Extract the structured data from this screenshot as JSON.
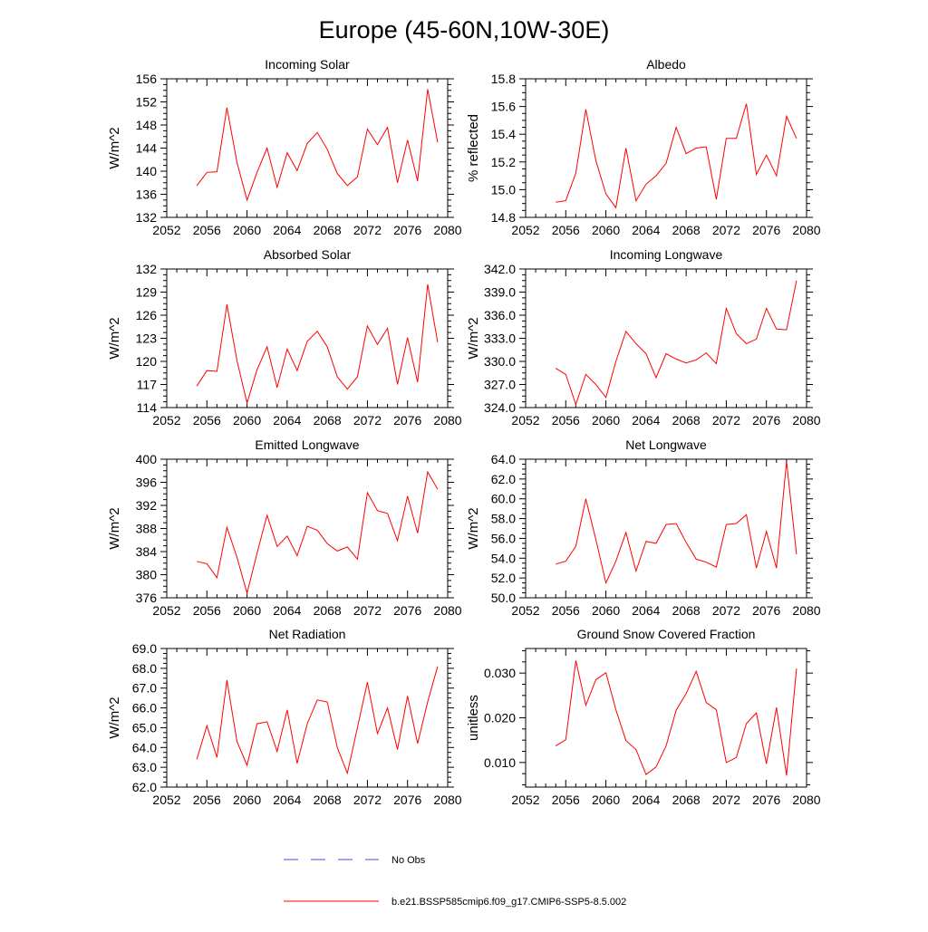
{
  "title": "Europe (45-60N,10W-30E)",
  "colors": {
    "model": "#ff0000",
    "obs": "#4a4ad0",
    "axis": "#000000"
  },
  "legend": {
    "obs_label": "No Obs",
    "model_label": "b.e21.BSSP585cmip6.f09_g17.CMIP6-SSP5-8.5.002"
  },
  "chart_data": [
    {
      "type": "line",
      "title": "Incoming Solar",
      "xlabel": "",
      "ylabel": "W/m^2",
      "xlim": [
        2052,
        2080
      ],
      "ylim": [
        132,
        156
      ],
      "xticks": [
        2052,
        2056,
        2060,
        2064,
        2068,
        2072,
        2076,
        2080
      ],
      "yticks": [
        132,
        136,
        140,
        144,
        148,
        152,
        156
      ],
      "ytick_decimals": 0,
      "x": [
        2055,
        2056,
        2057,
        2058,
        2059,
        2060,
        2061,
        2062,
        2063,
        2064,
        2065,
        2066,
        2067,
        2068,
        2069,
        2070,
        2071,
        2072,
        2073,
        2074,
        2075,
        2076,
        2077,
        2078,
        2079
      ],
      "series": [
        {
          "name": "b.e21.BSSP585cmip6.f09_g17.CMIP6-SSP5-8.5.002",
          "values": [
            137.5,
            139.8,
            139.9,
            151.0,
            141.5,
            135.0,
            139.8,
            144.0,
            137.2,
            143.2,
            140.1,
            144.8,
            146.7,
            143.8,
            139.6,
            137.5,
            139.0,
            147.3,
            144.6,
            147.6,
            138.0,
            145.4,
            138.3,
            154.2,
            145.0
          ]
        }
      ]
    },
    {
      "type": "line",
      "title": "Albedo",
      "xlabel": "",
      "ylabel": "% reflected",
      "xlim": [
        2052,
        2080
      ],
      "ylim": [
        14.8,
        15.8
      ],
      "xticks": [
        2052,
        2056,
        2060,
        2064,
        2068,
        2072,
        2076,
        2080
      ],
      "yticks": [
        14.8,
        15.0,
        15.2,
        15.4,
        15.6,
        15.8
      ],
      "ytick_decimals": 1,
      "x": [
        2055,
        2056,
        2057,
        2058,
        2059,
        2060,
        2061,
        2062,
        2063,
        2064,
        2065,
        2066,
        2067,
        2068,
        2069,
        2070,
        2071,
        2072,
        2073,
        2074,
        2075,
        2076,
        2077,
        2078,
        2079
      ],
      "series": [
        {
          "name": "b.e21.BSSP585cmip6.f09_g17.CMIP6-SSP5-8.5.002",
          "values": [
            14.91,
            14.92,
            15.12,
            15.58,
            15.21,
            14.97,
            14.87,
            15.3,
            14.92,
            15.04,
            15.1,
            15.19,
            15.45,
            15.26,
            15.3,
            15.31,
            14.93,
            15.37,
            15.37,
            15.62,
            15.11,
            15.25,
            15.1,
            15.53,
            15.37
          ]
        }
      ]
    },
    {
      "type": "line",
      "title": "Absorbed Solar",
      "xlabel": "",
      "ylabel": "W/m^2",
      "xlim": [
        2052,
        2080
      ],
      "ylim": [
        114,
        132
      ],
      "xticks": [
        2052,
        2056,
        2060,
        2064,
        2068,
        2072,
        2076,
        2080
      ],
      "yticks": [
        114,
        117,
        120,
        123,
        126,
        129,
        132
      ],
      "ytick_decimals": 0,
      "x": [
        2055,
        2056,
        2057,
        2058,
        2059,
        2060,
        2061,
        2062,
        2063,
        2064,
        2065,
        2066,
        2067,
        2068,
        2069,
        2070,
        2071,
        2072,
        2073,
        2074,
        2075,
        2076,
        2077,
        2078,
        2079
      ],
      "series": [
        {
          "name": "b.e21.BSSP585cmip6.f09_g17.CMIP6-SSP5-8.5.002",
          "values": [
            116.8,
            118.8,
            118.7,
            127.4,
            120.1,
            114.6,
            118.9,
            121.9,
            116.6,
            121.6,
            118.8,
            122.6,
            123.9,
            121.9,
            118.0,
            116.4,
            118.0,
            124.6,
            122.2,
            124.3,
            117.0,
            123.1,
            117.3,
            130.0,
            122.5
          ]
        }
      ]
    },
    {
      "type": "line",
      "title": "Incoming Longwave",
      "xlabel": "",
      "ylabel": "W/m^2",
      "xlim": [
        2052,
        2080
      ],
      "ylim": [
        324,
        342
      ],
      "xticks": [
        2052,
        2056,
        2060,
        2064,
        2068,
        2072,
        2076,
        2080
      ],
      "yticks": [
        324,
        327,
        330,
        333,
        336,
        339,
        342
      ],
      "ytick_decimals": 1,
      "x": [
        2055,
        2056,
        2057,
        2058,
        2059,
        2060,
        2061,
        2062,
        2063,
        2064,
        2065,
        2066,
        2067,
        2068,
        2069,
        2070,
        2071,
        2072,
        2073,
        2074,
        2075,
        2076,
        2077,
        2078,
        2079
      ],
      "series": [
        {
          "name": "b.e21.BSSP585cmip6.f09_g17.CMIP6-SSP5-8.5.002",
          "values": [
            329.1,
            328.3,
            324.4,
            328.3,
            327.0,
            325.3,
            330.0,
            333.9,
            332.3,
            331.0,
            327.9,
            331.0,
            330.3,
            329.8,
            330.2,
            331.1,
            329.7,
            336.9,
            333.6,
            332.3,
            332.9,
            336.9,
            334.2,
            334.1,
            340.5
          ]
        }
      ]
    },
    {
      "type": "line",
      "title": "Emitted Longwave",
      "xlabel": "",
      "ylabel": "W/m^2",
      "xlim": [
        2052,
        2080
      ],
      "ylim": [
        376,
        400
      ],
      "xticks": [
        2052,
        2056,
        2060,
        2064,
        2068,
        2072,
        2076,
        2080
      ],
      "yticks": [
        376,
        380,
        384,
        388,
        392,
        396,
        400
      ],
      "ytick_decimals": 0,
      "x": [
        2055,
        2056,
        2057,
        2058,
        2059,
        2060,
        2061,
        2062,
        2063,
        2064,
        2065,
        2066,
        2067,
        2068,
        2069,
        2070,
        2071,
        2072,
        2073,
        2074,
        2075,
        2076,
        2077,
        2078,
        2079
      ],
      "series": [
        {
          "name": "b.e21.BSSP585cmip6.f09_g17.CMIP6-SSP5-8.5.002",
          "values": [
            382.3,
            381.9,
            379.5,
            388.2,
            383.0,
            376.8,
            383.7,
            390.3,
            384.9,
            386.7,
            383.3,
            388.4,
            387.7,
            385.4,
            384.1,
            384.8,
            382.7,
            394.2,
            391.1,
            390.6,
            385.9,
            393.6,
            387.2,
            397.8,
            394.8
          ]
        }
      ]
    },
    {
      "type": "line",
      "title": "Net Longwave",
      "xlabel": "",
      "ylabel": "W/m^2",
      "xlim": [
        2052,
        2080
      ],
      "ylim": [
        50,
        64
      ],
      "xticks": [
        2052,
        2056,
        2060,
        2064,
        2068,
        2072,
        2076,
        2080
      ],
      "yticks": [
        50,
        52,
        54,
        56,
        58,
        60,
        62,
        64
      ],
      "ytick_decimals": 1,
      "x": [
        2055,
        2056,
        2057,
        2058,
        2059,
        2060,
        2061,
        2062,
        2063,
        2064,
        2065,
        2066,
        2067,
        2068,
        2069,
        2070,
        2071,
        2072,
        2073,
        2074,
        2075,
        2076,
        2077,
        2078,
        2079
      ],
      "series": [
        {
          "name": "b.e21.BSSP585cmip6.f09_g17.CMIP6-SSP5-8.5.002",
          "values": [
            53.4,
            53.7,
            55.2,
            60.0,
            55.9,
            51.5,
            53.7,
            56.6,
            52.7,
            55.7,
            55.5,
            57.4,
            57.5,
            55.6,
            53.9,
            53.6,
            53.1,
            57.4,
            57.5,
            58.4,
            53.0,
            56.7,
            53.0,
            63.8,
            54.4
          ]
        }
      ]
    },
    {
      "type": "line",
      "title": "Net Radiation",
      "xlabel": "",
      "ylabel": "W/m^2",
      "xlim": [
        2052,
        2080
      ],
      "ylim": [
        62,
        69
      ],
      "xticks": [
        2052,
        2056,
        2060,
        2064,
        2068,
        2072,
        2076,
        2080
      ],
      "yticks": [
        62,
        63,
        64,
        65,
        66,
        67,
        68,
        69
      ],
      "ytick_decimals": 1,
      "x": [
        2055,
        2056,
        2057,
        2058,
        2059,
        2060,
        2061,
        2062,
        2063,
        2064,
        2065,
        2066,
        2067,
        2068,
        2069,
        2070,
        2071,
        2072,
        2073,
        2074,
        2075,
        2076,
        2077,
        2078,
        2079
      ],
      "series": [
        {
          "name": "b.e21.BSSP585cmip6.f09_g17.CMIP6-SSP5-8.5.002",
          "values": [
            63.4,
            65.1,
            63.5,
            67.4,
            64.3,
            63.1,
            65.2,
            65.3,
            63.8,
            65.9,
            63.2,
            65.2,
            66.4,
            66.3,
            64.0,
            62.7,
            65.0,
            67.3,
            64.7,
            66.0,
            63.9,
            66.6,
            64.2,
            66.3,
            68.1
          ]
        }
      ]
    },
    {
      "type": "line",
      "title": "Ground Snow Covered Fraction",
      "xlabel": "",
      "ylabel": "unitless",
      "xlim": [
        2052,
        2080
      ],
      "ylim": [
        0.0045,
        0.0355
      ],
      "xticks": [
        2052,
        2056,
        2060,
        2064,
        2068,
        2072,
        2076,
        2080
      ],
      "yticks": [
        0.01,
        0.02,
        0.03
      ],
      "ytick_decimals": 3,
      "x": [
        2055,
        2056,
        2057,
        2058,
        2059,
        2060,
        2061,
        2062,
        2063,
        2064,
        2065,
        2066,
        2067,
        2068,
        2069,
        2070,
        2071,
        2072,
        2073,
        2074,
        2075,
        2076,
        2077,
        2078,
        2079
      ],
      "series": [
        {
          "name": "b.e21.BSSP585cmip6.f09_g17.CMIP6-SSP5-8.5.002",
          "values": [
            0.0137,
            0.0151,
            0.0328,
            0.0228,
            0.0285,
            0.0301,
            0.0218,
            0.0149,
            0.0129,
            0.0073,
            0.009,
            0.0137,
            0.0217,
            0.0254,
            0.0304,
            0.0234,
            0.0218,
            0.01,
            0.0111,
            0.0187,
            0.0211,
            0.0097,
            0.0223,
            0.0071,
            0.031
          ]
        }
      ]
    }
  ]
}
